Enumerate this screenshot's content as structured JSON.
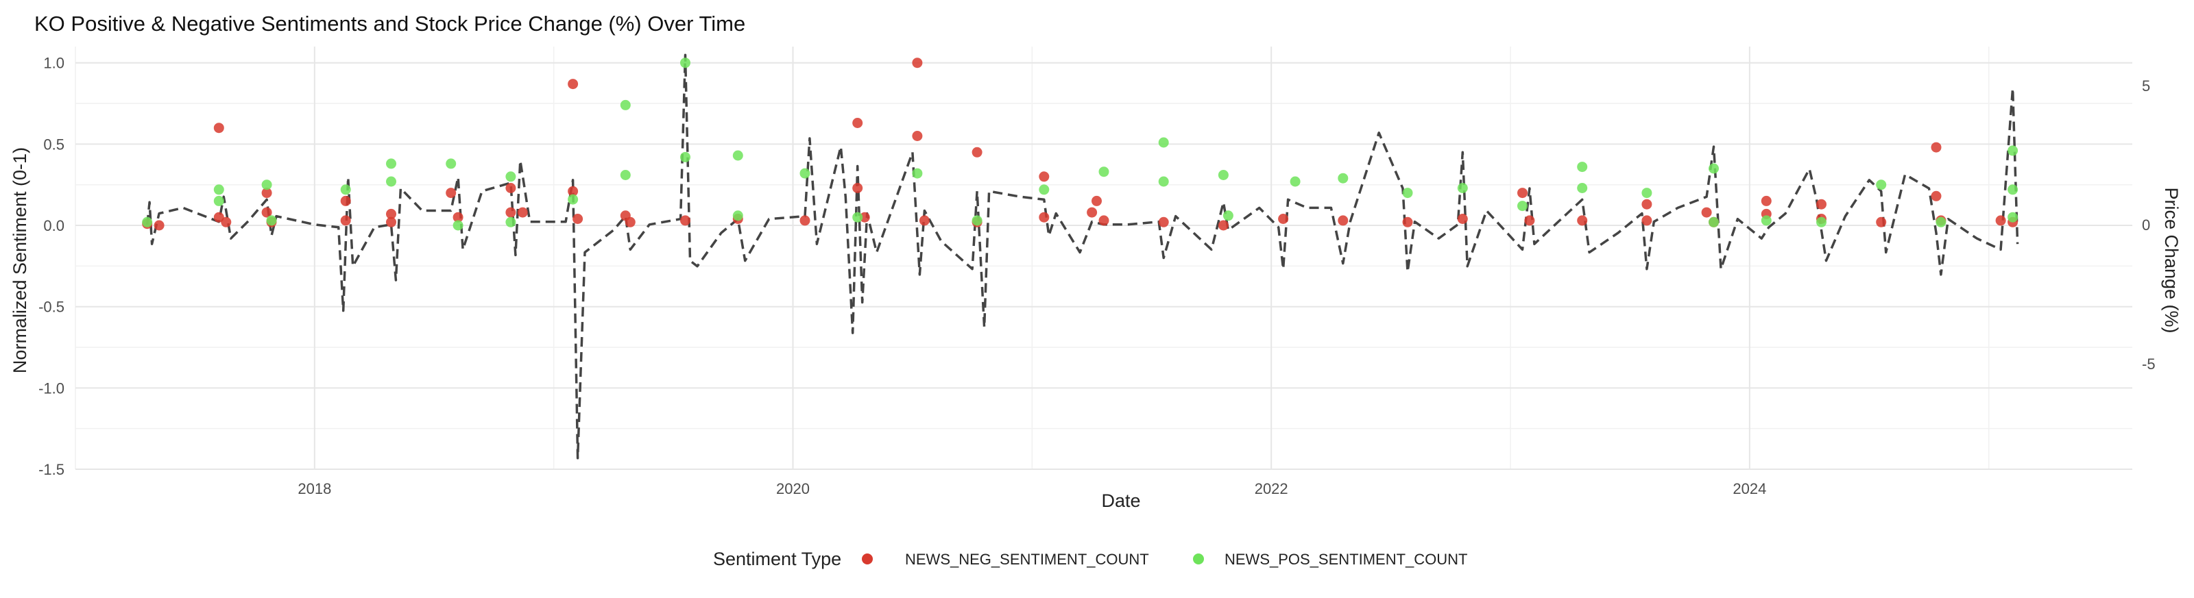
{
  "chart_data": {
    "type": "scatter",
    "title": "KO Positive & Negative Sentiments and Stock Price Change (%) Over Time",
    "xlabel": "Date",
    "ylabel": "Normalized Sentiment (0-1)",
    "y2label": "Price Change (%)",
    "xlim": [
      2017.0,
      2025.6
    ],
    "ylim": [
      -1.5,
      1.1
    ],
    "y2lim": [
      -8.8,
      6.4
    ],
    "x_ticks": [
      2018,
      2020,
      2022,
      2024
    ],
    "x_tick_labels": [
      "2018",
      "2020",
      "2022",
      "2024"
    ],
    "y_ticks": [
      -1.5,
      -1.0,
      -0.5,
      0.0,
      0.5,
      1.0
    ],
    "y_tick_labels": [
      "-1.5",
      "-1.0",
      "-0.5",
      "0.0",
      "0.5",
      "1.0"
    ],
    "y2_ticks": [
      -5,
      0,
      5
    ],
    "y2_tick_labels": [
      "-5",
      "0",
      "5"
    ],
    "grid": true,
    "legend": {
      "position": "bottom",
      "title": "Sentiment Type",
      "entries": [
        {
          "label": "NEWS_NEG_SENTIMENT_COUNT",
          "color": "#d83a2e"
        },
        {
          "label": "NEWS_POS_SENTIMENT_COUNT",
          "color": "#6ee35a"
        }
      ]
    },
    "series": [
      {
        "name": "NEWS_NEG_SENTIMENT_COUNT",
        "kind": "points",
        "color": "#d83a2e",
        "points": [
          [
            2017.3,
            0.01
          ],
          [
            2017.35,
            0.0
          ],
          [
            2017.6,
            0.6
          ],
          [
            2017.6,
            0.05
          ],
          [
            2017.63,
            0.02
          ],
          [
            2017.8,
            0.2
          ],
          [
            2017.8,
            0.08
          ],
          [
            2017.82,
            0.02
          ],
          [
            2018.13,
            0.15
          ],
          [
            2018.13,
            0.03
          ],
          [
            2018.32,
            0.07
          ],
          [
            2018.32,
            0.02
          ],
          [
            2018.57,
            0.2
          ],
          [
            2018.6,
            0.05
          ],
          [
            2018.82,
            0.23
          ],
          [
            2018.82,
            0.08
          ],
          [
            2018.87,
            0.08
          ],
          [
            2019.08,
            0.87
          ],
          [
            2019.08,
            0.21
          ],
          [
            2019.1,
            0.04
          ],
          [
            2019.3,
            0.06
          ],
          [
            2019.32,
            0.02
          ],
          [
            2019.55,
            0.03
          ],
          [
            2019.77,
            0.04
          ],
          [
            2020.05,
            0.03
          ],
          [
            2020.27,
            0.63
          ],
          [
            2020.27,
            0.23
          ],
          [
            2020.3,
            0.05
          ],
          [
            2020.52,
            1.0
          ],
          [
            2020.52,
            0.55
          ],
          [
            2020.55,
            0.03
          ],
          [
            2020.77,
            0.45
          ],
          [
            2020.77,
            0.02
          ],
          [
            2021.05,
            0.3
          ],
          [
            2021.05,
            0.05
          ],
          [
            2021.27,
            0.15
          ],
          [
            2021.25,
            0.08
          ],
          [
            2021.3,
            0.03
          ],
          [
            2021.55,
            0.02
          ],
          [
            2021.8,
            0.0
          ],
          [
            2022.05,
            0.04
          ],
          [
            2022.3,
            0.03
          ],
          [
            2022.57,
            0.02
          ],
          [
            2022.8,
            0.04
          ],
          [
            2023.05,
            0.2
          ],
          [
            2023.08,
            0.03
          ],
          [
            2023.3,
            0.03
          ],
          [
            2023.57,
            0.13
          ],
          [
            2023.57,
            0.03
          ],
          [
            2023.82,
            0.08
          ],
          [
            2023.85,
            0.02
          ],
          [
            2024.07,
            0.15
          ],
          [
            2024.07,
            0.07
          ],
          [
            2024.3,
            0.13
          ],
          [
            2024.3,
            0.04
          ],
          [
            2024.55,
            0.02
          ],
          [
            2024.78,
            0.48
          ],
          [
            2024.78,
            0.18
          ],
          [
            2024.8,
            0.03
          ],
          [
            2025.05,
            0.03
          ],
          [
            2025.1,
            0.02
          ]
        ]
      },
      {
        "name": "NEWS_POS_SENTIMENT_COUNT",
        "kind": "points",
        "color": "#6ee35a",
        "points": [
          [
            2017.3,
            0.02
          ],
          [
            2017.6,
            0.22
          ],
          [
            2017.6,
            0.15
          ],
          [
            2017.8,
            0.25
          ],
          [
            2017.82,
            0.03
          ],
          [
            2018.13,
            0.22
          ],
          [
            2018.32,
            0.38
          ],
          [
            2018.32,
            0.27
          ],
          [
            2018.57,
            0.38
          ],
          [
            2018.6,
            0.0
          ],
          [
            2018.82,
            0.3
          ],
          [
            2018.82,
            0.02
          ],
          [
            2019.08,
            0.16
          ],
          [
            2019.3,
            0.74
          ],
          [
            2019.3,
            0.31
          ],
          [
            2019.55,
            1.0
          ],
          [
            2019.55,
            0.42
          ],
          [
            2019.77,
            0.43
          ],
          [
            2019.77,
            0.06
          ],
          [
            2020.05,
            0.32
          ],
          [
            2020.27,
            0.05
          ],
          [
            2020.52,
            0.32
          ],
          [
            2020.77,
            0.03
          ],
          [
            2021.05,
            0.22
          ],
          [
            2021.3,
            0.33
          ],
          [
            2021.55,
            0.51
          ],
          [
            2021.55,
            0.27
          ],
          [
            2021.8,
            0.31
          ],
          [
            2021.82,
            0.06
          ],
          [
            2022.1,
            0.27
          ],
          [
            2022.3,
            0.29
          ],
          [
            2022.57,
            0.2
          ],
          [
            2022.8,
            0.23
          ],
          [
            2023.05,
            0.12
          ],
          [
            2023.3,
            0.36
          ],
          [
            2023.3,
            0.23
          ],
          [
            2023.57,
            0.2
          ],
          [
            2023.85,
            0.35
          ],
          [
            2023.85,
            0.02
          ],
          [
            2024.07,
            0.03
          ],
          [
            2024.3,
            0.02
          ],
          [
            2024.55,
            0.25
          ],
          [
            2024.8,
            0.02
          ],
          [
            2025.1,
            0.46
          ],
          [
            2025.1,
            0.22
          ],
          [
            2025.1,
            0.05
          ]
        ]
      },
      {
        "name": "Price Change (%)",
        "kind": "line",
        "dash": "dashed",
        "axis": "y2",
        "color": "#444444",
        "points": [
          [
            2017.3,
            0.0
          ],
          [
            2017.31,
            0.8
          ],
          [
            2017.32,
            -0.7
          ],
          [
            2017.35,
            0.4
          ],
          [
            2017.45,
            0.6
          ],
          [
            2017.6,
            0.1
          ],
          [
            2017.62,
            1.0
          ],
          [
            2017.65,
            -0.5
          ],
          [
            2017.72,
            0.1
          ],
          [
            2017.8,
            0.9
          ],
          [
            2017.82,
            -0.4
          ],
          [
            2017.84,
            0.3
          ],
          [
            2018.0,
            0.0
          ],
          [
            2018.1,
            -0.1
          ],
          [
            2018.12,
            -3.1
          ],
          [
            2018.14,
            1.7
          ],
          [
            2018.16,
            -1.5
          ],
          [
            2018.25,
            -0.1
          ],
          [
            2018.32,
            0.0
          ],
          [
            2018.34,
            -2.0
          ],
          [
            2018.36,
            1.3
          ],
          [
            2018.45,
            0.5
          ],
          [
            2018.57,
            0.5
          ],
          [
            2018.6,
            1.7
          ],
          [
            2018.62,
            -0.9
          ],
          [
            2018.7,
            1.2
          ],
          [
            2018.82,
            1.5
          ],
          [
            2018.84,
            -1.1
          ],
          [
            2018.86,
            2.3
          ],
          [
            2018.9,
            0.1
          ],
          [
            2019.05,
            0.1
          ],
          [
            2019.08,
            1.6
          ],
          [
            2019.1,
            -8.4
          ],
          [
            2019.13,
            -1.0
          ],
          [
            2019.25,
            -0.2
          ],
          [
            2019.3,
            0.3
          ],
          [
            2019.32,
            -0.9
          ],
          [
            2019.4,
            0.0
          ],
          [
            2019.53,
            0.2
          ],
          [
            2019.55,
            6.1
          ],
          [
            2019.57,
            -1.3
          ],
          [
            2019.6,
            -1.5
          ],
          [
            2019.7,
            -0.3
          ],
          [
            2019.77,
            0.2
          ],
          [
            2019.8,
            -1.3
          ],
          [
            2019.9,
            0.2
          ],
          [
            2020.05,
            0.3
          ],
          [
            2020.07,
            3.1
          ],
          [
            2020.1,
            -0.7
          ],
          [
            2020.2,
            2.8
          ],
          [
            2020.22,
            1.0
          ],
          [
            2020.25,
            -3.9
          ],
          [
            2020.27,
            2.1
          ],
          [
            2020.29,
            -2.8
          ],
          [
            2020.31,
            0.4
          ],
          [
            2020.35,
            -1.0
          ],
          [
            2020.5,
            2.6
          ],
          [
            2020.53,
            -1.8
          ],
          [
            2020.55,
            0.5
          ],
          [
            2020.62,
            -0.6
          ],
          [
            2020.75,
            -1.6
          ],
          [
            2020.77,
            1.2
          ],
          [
            2020.8,
            -3.7
          ],
          [
            2020.82,
            1.2
          ],
          [
            2020.95,
            1.0
          ],
          [
            2021.05,
            0.9
          ],
          [
            2021.07,
            -0.4
          ],
          [
            2021.1,
            0.4
          ],
          [
            2021.2,
            -1.0
          ],
          [
            2021.25,
            0.1
          ],
          [
            2021.3,
            0.0
          ],
          [
            2021.4,
            0.0
          ],
          [
            2021.53,
            0.1
          ],
          [
            2021.55,
            -1.2
          ],
          [
            2021.6,
            0.3
          ],
          [
            2021.75,
            -0.9
          ],
          [
            2021.8,
            0.8
          ],
          [
            2021.82,
            -0.2
          ],
          [
            2021.95,
            0.6
          ],
          [
            2022.03,
            -0.1
          ],
          [
            2022.05,
            -1.6
          ],
          [
            2022.07,
            0.9
          ],
          [
            2022.15,
            0.6
          ],
          [
            2022.25,
            0.6
          ],
          [
            2022.3,
            -1.4
          ],
          [
            2022.33,
            0.1
          ],
          [
            2022.45,
            3.3
          ],
          [
            2022.55,
            1.3
          ],
          [
            2022.57,
            -1.7
          ],
          [
            2022.6,
            0.1
          ],
          [
            2022.7,
            -0.5
          ],
          [
            2022.78,
            0.0
          ],
          [
            2022.8,
            2.6
          ],
          [
            2022.82,
            -1.5
          ],
          [
            2022.9,
            0.5
          ],
          [
            2023.05,
            -0.9
          ],
          [
            2023.08,
            1.3
          ],
          [
            2023.1,
            -0.7
          ],
          [
            2023.25,
            0.5
          ],
          [
            2023.3,
            0.9
          ],
          [
            2023.33,
            -1.0
          ],
          [
            2023.45,
            -0.3
          ],
          [
            2023.55,
            0.4
          ],
          [
            2023.57,
            -1.6
          ],
          [
            2023.6,
            0.1
          ],
          [
            2023.7,
            0.6
          ],
          [
            2023.82,
            1.0
          ],
          [
            2023.85,
            2.8
          ],
          [
            2023.88,
            -1.6
          ],
          [
            2023.95,
            0.2
          ],
          [
            2024.05,
            -0.5
          ],
          [
            2024.08,
            -0.1
          ],
          [
            2024.15,
            0.4
          ],
          [
            2024.25,
            2.0
          ],
          [
            2024.28,
            0.9
          ],
          [
            2024.32,
            -1.3
          ],
          [
            2024.4,
            0.3
          ],
          [
            2024.5,
            1.6
          ],
          [
            2024.55,
            1.2
          ],
          [
            2024.57,
            -1.0
          ],
          [
            2024.65,
            1.8
          ],
          [
            2024.75,
            1.3
          ],
          [
            2024.78,
            -0.3
          ],
          [
            2024.8,
            -1.8
          ],
          [
            2024.83,
            0.2
          ],
          [
            2024.95,
            -0.5
          ],
          [
            2025.05,
            -0.9
          ],
          [
            2025.1,
            4.9
          ],
          [
            2025.12,
            -0.7
          ]
        ]
      }
    ]
  }
}
